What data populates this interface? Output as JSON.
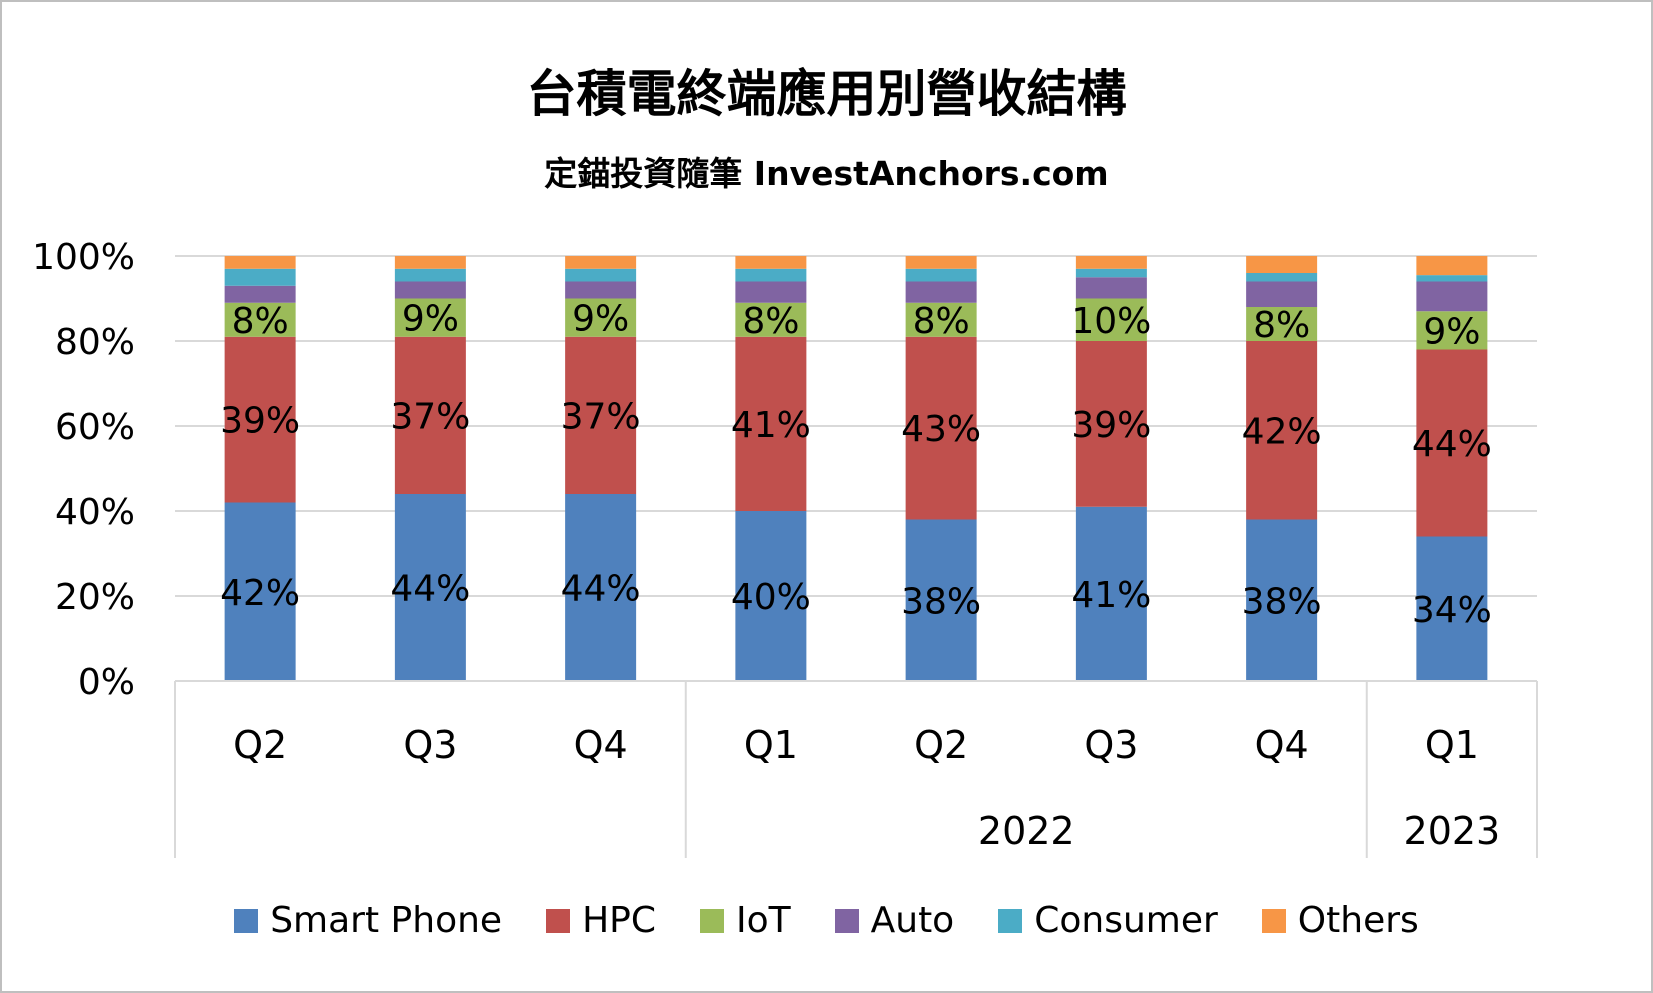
{
  "chart_data": {
    "type": "bar",
    "stacked": true,
    "title": "台積電終端應用別營收結構",
    "subtitle": "定錨投資隨筆 InvestAnchors.com",
    "categories": [
      "Q2",
      "Q3",
      "Q4",
      "Q1",
      "Q2",
      "Q3",
      "Q4",
      "Q1"
    ],
    "groups": [
      {
        "label": "",
        "start": 0,
        "end": 2
      },
      {
        "label": "2022",
        "start": 3,
        "end": 6
      },
      {
        "label": "2023",
        "start": 7,
        "end": 7
      }
    ],
    "series": [
      {
        "name": "Smart Phone",
        "color": "#4f81bd",
        "values": [
          42,
          44,
          44,
          40,
          38,
          41,
          38,
          34
        ],
        "labels": [
          "42%",
          "44%",
          "44%",
          "40%",
          "38%",
          "41%",
          "38%",
          "34%"
        ]
      },
      {
        "name": "HPC",
        "color": "#c0504d",
        "values": [
          39,
          37,
          37,
          41,
          43,
          39,
          42,
          44
        ],
        "labels": [
          "39%",
          "37%",
          "37%",
          "41%",
          "43%",
          "39%",
          "42%",
          "44%"
        ]
      },
      {
        "name": "IoT",
        "color": "#9bbb59",
        "values": [
          8,
          9,
          9,
          8,
          8,
          10,
          8,
          9
        ],
        "labels": [
          "8%",
          "9%",
          "9%",
          "8%",
          "8%",
          "10%",
          "8%",
          "9%"
        ]
      },
      {
        "name": "Auto",
        "color": "#8064a2",
        "values": [
          4,
          4,
          4,
          5,
          5,
          5,
          6,
          7
        ],
        "labels": null
      },
      {
        "name": "Consumer",
        "color": "#4bacc6",
        "values": [
          4,
          3,
          3,
          3,
          3,
          2,
          2,
          1.5
        ],
        "labels": null
      },
      {
        "name": "Others",
        "color": "#f79646",
        "values": [
          3,
          3,
          3,
          3,
          3,
          3,
          4,
          4.5
        ],
        "labels": null
      }
    ],
    "yticks": [
      "0%",
      "20%",
      "40%",
      "60%",
      "80%",
      "100%"
    ],
    "ylim": [
      0,
      100
    ],
    "grid": true,
    "legend": "bottom"
  }
}
